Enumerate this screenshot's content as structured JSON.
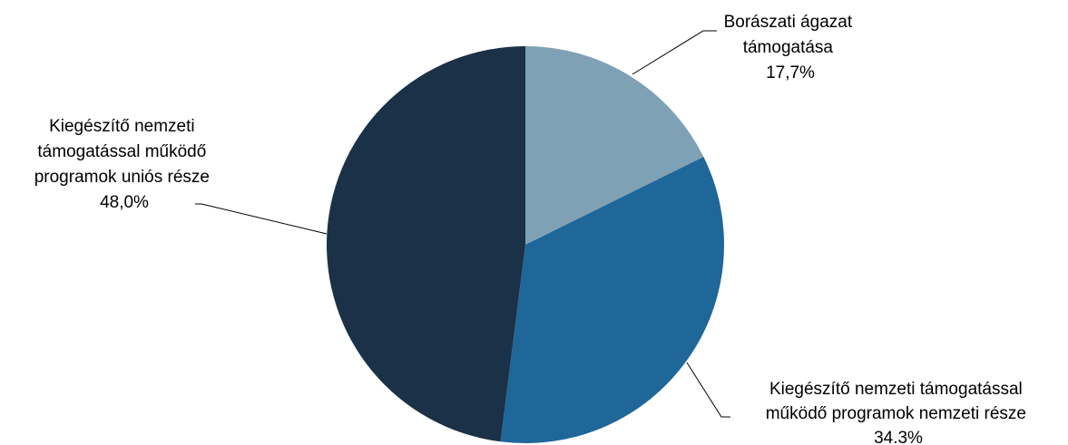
{
  "chart_data": {
    "type": "pie",
    "title": "",
    "start_angle_deg": 0,
    "direction": "clockwise",
    "slices": [
      {
        "label_lines": [
          "Borászati ágazat",
          "támogatása"
        ],
        "value_label": "17,7%",
        "value": 17.7,
        "color": "#7fa1b5"
      },
      {
        "label_lines": [
          "Kiegészítő nemzeti támogatással",
          "működő programok nemzeti része"
        ],
        "value_label": "34.3%",
        "value": 34.3,
        "color": "#1f6699"
      },
      {
        "label_lines": [
          "Kiegészítő nemzeti",
          "támogatással működő",
          "programok uniós része"
        ],
        "value_label": "48,0%",
        "value": 48.0,
        "color": "#1b3147"
      }
    ]
  }
}
